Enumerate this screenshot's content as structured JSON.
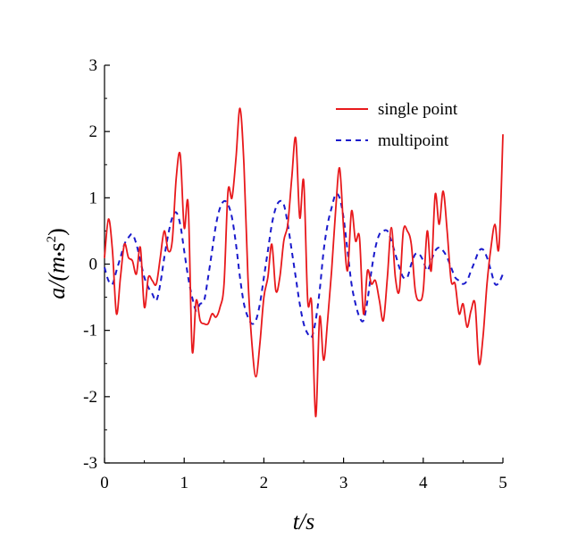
{
  "chart_data": {
    "type": "line",
    "xlabel": "t/s",
    "ylabel_main": "a/(m",
    "ylabel_dot": "•",
    "ylabel_unit": "s",
    "ylabel_exp": "2",
    "ylabel_close": ")",
    "xlim": [
      0,
      5
    ],
    "ylim": [
      -3,
      3
    ],
    "x_ticks": [
      0,
      1,
      2,
      3,
      4,
      5
    ],
    "y_ticks": [
      3,
      2,
      1,
      0,
      -1,
      -2,
      -3
    ],
    "x_tick_labels": [
      "0",
      "1",
      "2",
      "3",
      "4",
      "5"
    ],
    "y_tick_labels": [
      "3",
      "2",
      "1",
      "0",
      "-1",
      "-2",
      "-3"
    ],
    "grid": false,
    "legend_position": "top-right",
    "series": [
      {
        "name": "single point",
        "color": "#e8191c",
        "style": "solid",
        "x": [
          0,
          0.05,
          0.1,
          0.15,
          0.2,
          0.25,
          0.3,
          0.35,
          0.4,
          0.45,
          0.5,
          0.55,
          0.6,
          0.65,
          0.7,
          0.75,
          0.8,
          0.85,
          0.9,
          0.95,
          1.0,
          1.05,
          1.1,
          1.15,
          1.2,
          1.25,
          1.3,
          1.35,
          1.4,
          1.45,
          1.5,
          1.55,
          1.6,
          1.65,
          1.7,
          1.75,
          1.8,
          1.85,
          1.9,
          1.95,
          2.0,
          2.05,
          2.1,
          2.15,
          2.2,
          2.25,
          2.3,
          2.35,
          2.4,
          2.45,
          2.5,
          2.55,
          2.6,
          2.65,
          2.7,
          2.75,
          2.8,
          2.85,
          2.9,
          2.95,
          3.0,
          3.05,
          3.1,
          3.15,
          3.2,
          3.25,
          3.3,
          3.35,
          3.4,
          3.45,
          3.5,
          3.55,
          3.6,
          3.65,
          3.7,
          3.75,
          3.8,
          3.85,
          3.9,
          3.95,
          4.0,
          4.05,
          4.1,
          4.15,
          4.2,
          4.25,
          4.3,
          4.35,
          4.4,
          4.45,
          4.5,
          4.55,
          4.6,
          4.65,
          4.7,
          4.75,
          4.8,
          4.85,
          4.9,
          4.95,
          5.0
        ],
        "y": [
          0.1,
          0.68,
          0.2,
          -0.75,
          -0.2,
          0.3,
          0.1,
          0.05,
          -0.15,
          0.25,
          -0.65,
          -0.2,
          -0.25,
          -0.3,
          0.1,
          0.5,
          0.2,
          0.35,
          1.3,
          1.65,
          0.55,
          0.9,
          -1.3,
          -0.55,
          -0.85,
          -0.9,
          -0.9,
          -0.75,
          -0.8,
          -0.65,
          -0.3,
          1.1,
          1.0,
          1.6,
          2.35,
          1.5,
          -0.2,
          -1.2,
          -1.7,
          -1.2,
          -0.5,
          -0.2,
          0.3,
          -0.4,
          -0.2,
          0.35,
          0.6,
          1.3,
          1.9,
          0.7,
          1.25,
          -0.55,
          -0.6,
          -2.3,
          -0.8,
          -1.45,
          -0.85,
          -0.1,
          0.8,
          1.45,
          0.55,
          -0.1,
          0.8,
          0.35,
          0.4,
          -0.75,
          -0.1,
          -0.3,
          -0.25,
          -0.55,
          -0.85,
          -0.2,
          0.55,
          -0.2,
          -0.4,
          0.5,
          0.5,
          0.3,
          -0.4,
          -0.55,
          -0.4,
          0.5,
          -0.1,
          1.05,
          0.6,
          1.1,
          0.5,
          -0.25,
          -0.3,
          -0.75,
          -0.6,
          -0.95,
          -0.7,
          -0.6,
          -1.5,
          -1.1,
          -0.3,
          0.25,
          0.6,
          0.25,
          1.95
        ]
      },
      {
        "name": "multipoint",
        "color": "#1a1acc",
        "style": "dashed",
        "x": [
          0,
          0.05,
          0.1,
          0.15,
          0.2,
          0.25,
          0.3,
          0.35,
          0.4,
          0.45,
          0.5,
          0.55,
          0.6,
          0.65,
          0.7,
          0.75,
          0.8,
          0.85,
          0.9,
          0.95,
          1.0,
          1.05,
          1.1,
          1.15,
          1.2,
          1.25,
          1.3,
          1.35,
          1.4,
          1.45,
          1.5,
          1.55,
          1.6,
          1.65,
          1.7,
          1.75,
          1.8,
          1.85,
          1.9,
          1.95,
          2.0,
          2.05,
          2.1,
          2.15,
          2.2,
          2.25,
          2.3,
          2.35,
          2.4,
          2.45,
          2.5,
          2.55,
          2.6,
          2.65,
          2.7,
          2.75,
          2.8,
          2.85,
          2.9,
          2.95,
          3.0,
          3.05,
          3.1,
          3.15,
          3.2,
          3.25,
          3.3,
          3.35,
          3.4,
          3.45,
          3.5,
          3.55,
          3.6,
          3.65,
          3.7,
          3.75,
          3.8,
          3.85,
          3.9,
          3.95,
          4.0,
          4.05,
          4.1,
          4.15,
          4.2,
          4.25,
          4.3,
          4.35,
          4.4,
          4.45,
          4.5,
          4.55,
          4.6,
          4.65,
          4.7,
          4.75,
          4.8,
          4.85,
          4.9,
          4.95,
          5.0
        ],
        "y": [
          -0.05,
          -0.25,
          -0.3,
          -0.1,
          0.1,
          0.3,
          0.4,
          0.45,
          0.3,
          0.05,
          -0.2,
          -0.35,
          -0.45,
          -0.55,
          -0.3,
          0.1,
          0.45,
          0.7,
          0.78,
          0.6,
          0.2,
          -0.2,
          -0.5,
          -0.7,
          -0.6,
          -0.55,
          -0.2,
          0.2,
          0.6,
          0.85,
          0.95,
          0.9,
          0.7,
          0.3,
          -0.2,
          -0.6,
          -0.8,
          -0.9,
          -0.85,
          -0.6,
          -0.2,
          0.2,
          0.6,
          0.85,
          0.95,
          0.9,
          0.6,
          0.2,
          -0.2,
          -0.6,
          -0.9,
          -1.05,
          -1.1,
          -0.85,
          -0.4,
          0.2,
          0.6,
          0.85,
          1.05,
          1.0,
          0.7,
          0.2,
          -0.3,
          -0.6,
          -0.8,
          -0.85,
          -0.55,
          -0.1,
          0.25,
          0.45,
          0.5,
          0.5,
          0.35,
          0.15,
          -0.05,
          -0.2,
          -0.2,
          0.0,
          0.15,
          0.15,
          0.05,
          -0.1,
          0.05,
          0.2,
          0.25,
          0.2,
          0.1,
          -0.05,
          -0.2,
          -0.25,
          -0.3,
          -0.25,
          -0.1,
          0.05,
          0.2,
          0.22,
          0.1,
          -0.1,
          -0.3,
          -0.28,
          -0.15
        ]
      }
    ]
  }
}
